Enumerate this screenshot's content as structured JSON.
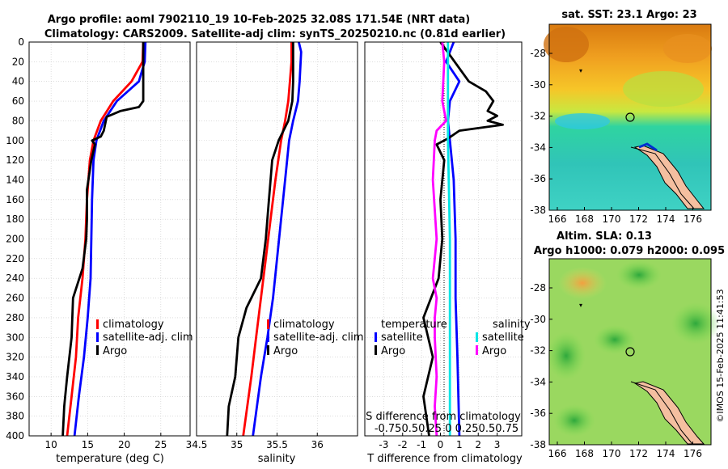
{
  "title_line1": "Argo profile: aoml 7902110_19 10-Feb-2025 32.08S 171.54E (NRT data)",
  "title_line2": "Climatology: CARS2009. Satellite-adj clim: synTS_20250210.nc (0.81d earlier)",
  "map1_title": "sat. SST: 23.1 Argo: 23",
  "map2_title1": "Altim. SLA: 0.13",
  "map2_title2": "Argo h1000: 0.079 h2000: 0.095",
  "imos_stamp": "©IMOS 15-Feb-2025 11:41:53",
  "colors": {
    "climatology": "#ff0000",
    "satellite": "#0000ff",
    "argo": "#000000",
    "satellite_salinity": "#00e5e5",
    "argo_salinity": "#ff00ff"
  },
  "depth_ticks": [
    "0",
    "20",
    "40",
    "60",
    "80",
    "100",
    "120",
    "140",
    "160",
    "180",
    "200",
    "220",
    "240",
    "260",
    "280",
    "300",
    "320",
    "340",
    "360",
    "380",
    "400"
  ],
  "chart_data": [
    {
      "type": "line",
      "name": "temperature",
      "xlabel": "temperature (deg C)",
      "xlim": [
        7,
        29
      ],
      "xticks": [
        10,
        15,
        20,
        25
      ],
      "xtick_labels": [
        "10",
        "15",
        "20",
        "25"
      ],
      "ylim": [
        0,
        400
      ],
      "legend": [
        "climatology",
        "satellite-adj. clim",
        "Argo"
      ],
      "series": [
        {
          "name": "climatology",
          "color": "#ff0000",
          "depth": [
            0,
            20,
            40,
            60,
            80,
            100,
            120,
            160,
            200,
            240,
            280,
            320,
            360,
            400
          ],
          "values": [
            22.6,
            22.5,
            21.0,
            18.5,
            16.8,
            15.8,
            15.3,
            14.9,
            14.7,
            14.3,
            13.7,
            13.4,
            12.8,
            12.2
          ]
        },
        {
          "name": "satellite-adj. clim",
          "color": "#0000ff",
          "depth": [
            0,
            20,
            40,
            60,
            80,
            100,
            120,
            160,
            200,
            240,
            280,
            320,
            360,
            400
          ],
          "values": [
            22.9,
            22.8,
            22.0,
            19.0,
            17.2,
            16.2,
            15.8,
            15.6,
            15.5,
            15.4,
            15.0,
            14.5,
            13.8,
            13.2
          ]
        },
        {
          "name": "Argo",
          "color": "#000000",
          "depth": [
            0,
            20,
            40,
            60,
            66,
            70,
            76,
            90,
            96,
            100,
            104,
            120,
            150,
            180,
            200,
            230,
            260,
            300,
            340,
            370,
            400
          ],
          "values": [
            22.6,
            22.6,
            22.6,
            22.6,
            22.0,
            19.5,
            17.6,
            17.2,
            16.8,
            15.6,
            16.0,
            15.5,
            14.9,
            14.9,
            14.8,
            14.3,
            13.0,
            12.8,
            12.2,
            11.8,
            11.6
          ]
        }
      ]
    },
    {
      "type": "line",
      "name": "salinity",
      "xlabel": "salinity",
      "xlim": [
        34.5,
        36.5
      ],
      "xticks": [
        34.5,
        35,
        35.5,
        36
      ],
      "xtick_labels": [
        "34.5",
        "35",
        "35.5",
        "36"
      ],
      "ylim": [
        0,
        400
      ],
      "legend": [
        "climatology",
        "satellite-adj. clim",
        "Argo"
      ],
      "series": [
        {
          "name": "climatology",
          "color": "#ff0000",
          "depth": [
            0,
            20,
            40,
            60,
            80,
            100,
            140,
            180,
            220,
            260,
            300,
            340,
            400
          ],
          "values": [
            35.68,
            35.68,
            35.66,
            35.64,
            35.6,
            35.55,
            35.48,
            35.42,
            35.36,
            35.3,
            35.24,
            35.18,
            35.08
          ]
        },
        {
          "name": "satellite-adj. clim",
          "color": "#0000ff",
          "depth": [
            0,
            10,
            40,
            60,
            80,
            100,
            140,
            180,
            220,
            260,
            300,
            340,
            400
          ],
          "values": [
            35.77,
            35.8,
            35.78,
            35.76,
            35.7,
            35.65,
            35.6,
            35.55,
            35.5,
            35.45,
            35.38,
            35.3,
            35.2
          ]
        },
        {
          "name": "Argo",
          "color": "#000000",
          "depth": [
            0,
            40,
            60,
            80,
            100,
            120,
            160,
            200,
            240,
            270,
            300,
            340,
            370,
            400
          ],
          "values": [
            35.7,
            35.7,
            35.69,
            35.64,
            35.52,
            35.44,
            35.4,
            35.36,
            35.3,
            35.12,
            35.02,
            34.98,
            34.9,
            34.88
          ]
        }
      ]
    },
    {
      "type": "line",
      "name": "difference",
      "xlabel": "T difference from climatology",
      "xlim": [
        -4,
        4.3
      ],
      "xticks": [
        -3,
        -2,
        -1,
        0,
        1,
        2,
        3
      ],
      "xtick_labels": [
        "-3",
        "-2",
        "-1",
        "0",
        "1",
        "2",
        "3"
      ],
      "secondary_xlabel": "S difference from climatology",
      "secondary_xtick_labels": "-0.750.50.25 0  0.250.50.75",
      "ylim": [
        0,
        400
      ],
      "legend_temperature": "temperature",
      "legend_salinity": "salinity",
      "legend": [
        "satellite",
        "Argo",
        "satellite",
        "Argo"
      ],
      "series": [
        {
          "name": "temperature satellite",
          "color": "#0000ff",
          "depth": [
            0,
            20,
            40,
            60,
            80,
            100,
            140,
            200,
            260,
            320,
            400
          ],
          "values": [
            0.7,
            0.3,
            1.0,
            0.5,
            0.4,
            0.5,
            0.7,
            0.8,
            0.8,
            0.9,
            1.0
          ]
        },
        {
          "name": "temperature Argo",
          "color": "#000000",
          "depth": [
            0,
            40,
            50,
            60,
            70,
            75,
            80,
            84,
            90,
            98,
            104,
            120,
            160,
            200,
            240,
            280,
            320,
            360,
            400
          ],
          "values": [
            0.0,
            1.5,
            2.4,
            2.8,
            2.5,
            3.0,
            2.5,
            3.3,
            1.0,
            0.4,
            -0.2,
            0.2,
            0.0,
            0.1,
            -0.1,
            -0.9,
            -0.4,
            -0.9,
            -0.6
          ]
        },
        {
          "name": "salinity satellite",
          "color": "#00e5e5",
          "depth": [
            0,
            40,
            100,
            200,
            300,
            400
          ],
          "values": [
            0.4,
            0.4,
            0.4,
            0.5,
            0.5,
            0.5
          ]
        },
        {
          "name": "salinity Argo",
          "color": "#ff00ff",
          "depth": [
            0,
            20,
            60,
            80,
            90,
            100,
            140,
            200,
            240,
            260,
            280,
            300,
            340,
            370,
            400
          ],
          "values": [
            0.1,
            0.2,
            0.1,
            0.3,
            -0.2,
            -0.3,
            -0.4,
            -0.2,
            -0.4,
            -0.2,
            -0.3,
            -0.3,
            -0.2,
            -0.3,
            -0.2
          ]
        }
      ]
    },
    {
      "type": "heatmap",
      "name": "sat. SST map",
      "title": "sat. SST: 23.1 Argo: 23",
      "lon_ticks": [
        "166",
        "168",
        "170",
        "172",
        "174",
        "176"
      ],
      "lat_ticks": [
        "-28",
        "-30",
        "-32",
        "-34",
        "-36",
        "-38"
      ],
      "argo_position": {
        "lon": 171.54,
        "lat": -32.08
      }
    },
    {
      "type": "heatmap",
      "name": "altimetry SLA map",
      "title": "Altim. SLA: 0.13",
      "lon_ticks": [
        "166",
        "168",
        "170",
        "172",
        "174",
        "176"
      ],
      "lat_ticks": [
        "-28",
        "-30",
        "-32",
        "-34",
        "-36",
        "-38"
      ],
      "argo_position": {
        "lon": 171.54,
        "lat": -32.08
      }
    }
  ]
}
